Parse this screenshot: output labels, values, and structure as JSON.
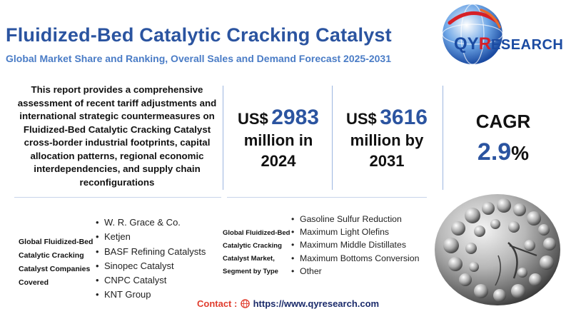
{
  "header": {
    "title": "Fluidized-Bed Catalytic Cracking Catalyst",
    "subtitle": "Global Market Share and Ranking, Overall Sales and Demand Forecast 2025-2031"
  },
  "logo": {
    "qy": "QY",
    "r": "R",
    "rest": "ESEARCH"
  },
  "description": "This report provides a comprehensive assessment of recent tariff adjustments and international strategic countermeasures on Fluidized-Bed Catalytic Cracking Catalyst cross-border industrial footprints, capital allocation patterns, regional economic interdependencies, and supply chain reconfigurations",
  "stats": {
    "market_2024": {
      "prefix": "US$",
      "value": "2983",
      "line1": "million in",
      "line2": "2024"
    },
    "market_2031": {
      "prefix": "US$",
      "value": "3616",
      "line1": "million by",
      "line2": "2031"
    },
    "cagr": {
      "label": "CAGR",
      "value": "2.9",
      "unit": "%"
    }
  },
  "companies": {
    "label": "Global Fluidized-Bed Catalytic Cracking Catalyst Companies Covered",
    "items": [
      "W. R. Grace & Co.",
      "Ketjen",
      "BASF Refining Catalysts",
      "Sinopec Catalyst",
      "CNPC Catalyst",
      "KNT Group"
    ]
  },
  "segments": {
    "label": "Global Fluidized-Bed Catalytic Cracking Catalyst Market, Segment by Type",
    "items": [
      "Gasoline Sulfur Reduction",
      "Maximum Light Olefins",
      "Maximum Middle Distillates",
      "Maximum Bottoms Conversion",
      "Other"
    ]
  },
  "contact": {
    "label": "Contact :",
    "url": "https://www.qyresearch.com"
  },
  "colors": {
    "title": "#2b54a0",
    "subtitle": "#4a7cc6",
    "accent_red": "#d62027",
    "divider": "#9db6e0"
  }
}
